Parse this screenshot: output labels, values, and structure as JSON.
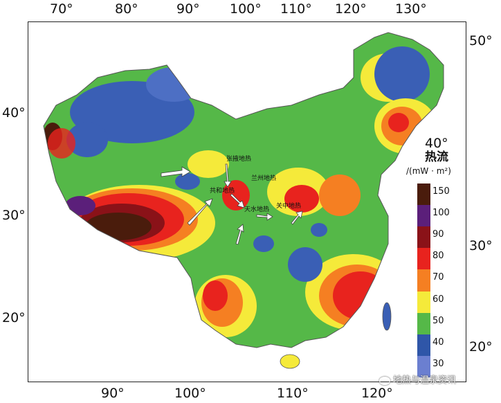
{
  "axes": {
    "longitude_top": [
      "70°",
      "80°",
      "90°",
      "100°",
      "110°",
      "120°",
      "130°"
    ],
    "longitude_bottom": [
      "90°",
      "100°",
      "110°",
      "120°"
    ],
    "latitude_left": [
      "40°",
      "30°",
      "20°"
    ],
    "latitude_right": [
      "50°",
      "30°",
      "20°"
    ],
    "latitude_inner": [
      "40°"
    ]
  },
  "legend": {
    "title": "热流",
    "unit": "/(mW · m²)",
    "labels": [
      "150",
      "100",
      "90",
      "80",
      "70",
      "60",
      "50",
      "40",
      "30"
    ],
    "colors": [
      "#4a1c0c",
      "#5b1f7a",
      "#8a1218",
      "#e8231e",
      "#f57f22",
      "#f5ea3a",
      "#55b848",
      "#2f56a8",
      "#6b7fd0"
    ]
  },
  "sites": [
    {
      "name": "张掖地热"
    },
    {
      "name": "共和地热"
    },
    {
      "name": "兰州地热"
    },
    {
      "name": "天水地热"
    },
    {
      "name": "关中地热"
    }
  ],
  "watermark": "地热与温泉资讯"
}
